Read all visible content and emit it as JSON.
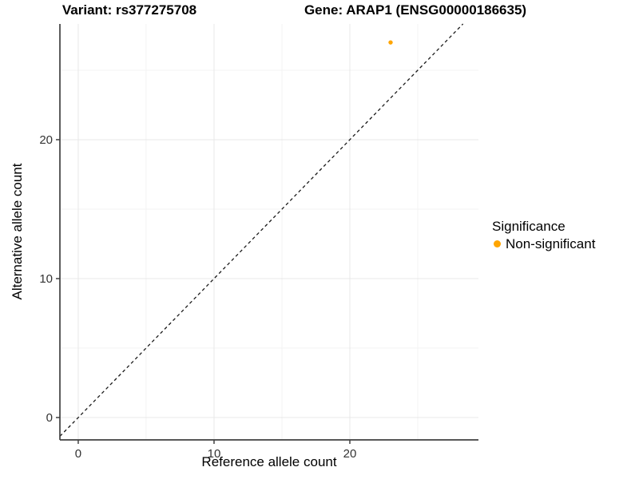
{
  "chart_data": {
    "type": "scatter",
    "titles": [
      "Variant: rs377275708",
      "Gene: ARAP1 (ENSG00000186635)"
    ],
    "xlabel": "Reference allele count",
    "ylabel": "Alternative allele count",
    "xlim": [
      -1.35,
      29.47
    ],
    "ylim": [
      -1.61,
      28.33
    ],
    "x_ticks": [
      0,
      10,
      20
    ],
    "y_ticks": [
      0,
      10,
      20
    ],
    "x_minor_ticks": [
      5,
      15,
      25
    ],
    "y_minor_ticks": [
      5,
      15,
      25
    ],
    "grid": "major and minor gridlines, light gray on white panel",
    "legend_title": "Significance",
    "legend_position": "right",
    "series": [
      {
        "name": "Non-significant",
        "color": "#FFA500",
        "points": [
          {
            "x": 23,
            "y": 27
          }
        ]
      }
    ],
    "reference_line": {
      "description": "identity line y = x",
      "slope": 1,
      "intercept": 0,
      "linetype": "dashed",
      "color": "#1A1A1A"
    }
  },
  "colors": {
    "background": "#FFFFFF",
    "grid_major": "#E8E8E8",
    "grid_minor": "#F3F3F3",
    "axis_line": "#404040",
    "tick_label": "#333333",
    "title_text": "#000000",
    "point": "#FFA500"
  }
}
